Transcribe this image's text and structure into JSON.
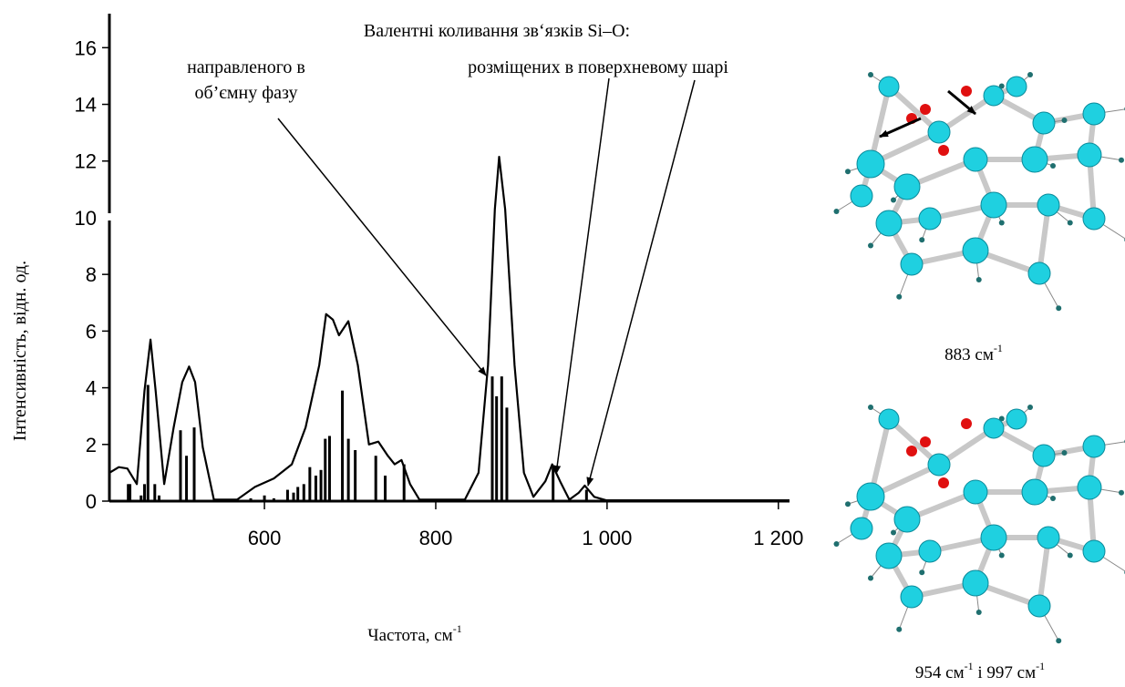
{
  "chart_data": {
    "type": "line",
    "y_label": "Інтенсивність, відн. од.",
    "x_label": {
      "text": "Частота, см",
      "sup": "-1"
    },
    "annotations": {
      "title": "Валентні коливання зв‘язків Si–O:",
      "bulk_1": "направленого в",
      "bulk_2": "об’ємну фазу",
      "surface": "розміщених в поверхневому шарі"
    },
    "captions": [
      {
        "text": "883 см",
        "sup": "-1"
      },
      {
        "text": "954 см",
        "sup": "-1",
        "text2": " і 997 см",
        "sup2": "-1"
      }
    ],
    "xlim": [
      419,
      1213
    ],
    "ylim": [
      0,
      17.2
    ],
    "xticks": [
      600,
      800,
      {
        "value": 1000,
        "label": "1 000"
      },
      {
        "value": 1200,
        "label": "1 200"
      }
    ],
    "yticks": [
      0,
      2,
      4,
      6,
      8,
      10,
      12,
      14,
      16
    ],
    "series": [
      {
        "type": "line",
        "color": "#000000",
        "x": [
          419,
          430,
          440,
          451,
          460,
          467,
          473,
          483,
          494,
          504,
          512,
          519,
          528,
          541,
          568,
          589,
          611,
          632,
          648,
          664,
          672,
          680,
          687,
          698,
          709,
          722,
          733,
          744,
          752,
          760,
          770,
          781,
          834,
          850,
          861,
          869,
          874,
          881,
          892,
          903,
          914,
          928,
          936,
          946,
          956,
          967,
          974,
          985,
          999,
          1213
        ],
        "values": [
          1.0,
          1.2,
          1.15,
          0.6,
          3.9,
          5.7,
          3.9,
          0.6,
          2.6,
          4.2,
          4.75,
          4.2,
          1.9,
          0.05,
          0.05,
          0.5,
          0.8,
          1.3,
          2.6,
          4.8,
          6.6,
          6.4,
          5.85,
          6.35,
          4.8,
          2.0,
          2.1,
          1.6,
          1.3,
          1.45,
          0.6,
          0.05,
          0.05,
          1.0,
          4.8,
          10.3,
          12.15,
          10.3,
          4.8,
          1.0,
          0.15,
          0.7,
          1.3,
          0.65,
          0.05,
          0.3,
          0.55,
          0.15,
          0.03,
          0.03
        ]
      },
      {
        "type": "bar",
        "color": "#000000",
        "x": [
          441,
          443,
          456,
          460,
          464,
          472,
          477,
          502,
          509,
          518,
          584,
          600,
          611,
          627,
          634,
          639,
          646,
          653,
          660,
          666,
          671,
          676,
          691,
          698,
          706,
          730,
          741,
          763,
          866,
          871,
          877,
          883,
          937,
          976
        ],
        "values": [
          0.6,
          0.6,
          0.2,
          0.6,
          4.1,
          0.6,
          0.2,
          2.5,
          1.6,
          2.6,
          0.1,
          0.2,
          0.1,
          0.4,
          0.3,
          0.5,
          0.6,
          1.2,
          0.9,
          1.1,
          2.2,
          2.3,
          3.9,
          2.2,
          1.8,
          1.6,
          0.9,
          1.3,
          4.4,
          3.7,
          4.4,
          3.3,
          1.2,
          0.4
        ]
      }
    ]
  }
}
